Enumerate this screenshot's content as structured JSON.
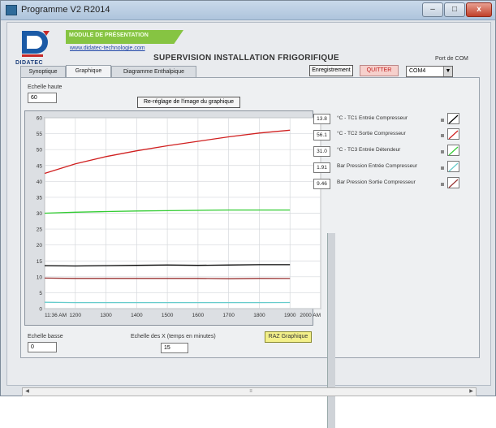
{
  "window": {
    "title": "Programme V2 R2014",
    "min_label": "–",
    "max_label": "□",
    "close_label": "x"
  },
  "header": {
    "logo_text": "DIDATEC",
    "banner_text": "MODULE DE PRÉSENTATION",
    "url": "www.didatec-technologie.com",
    "title": "SUPERVISION INSTALLATION FRIGORIFIQUE",
    "com_label": "Port de COM"
  },
  "tabs": [
    {
      "label": "Synoptique"
    },
    {
      "label": "Graphique"
    },
    {
      "label": "Diagramme Enthalpique"
    }
  ],
  "toolbar": {
    "enreg_label": "Enregistrement",
    "quitter_label": "QUITTER",
    "com_value": "COM4"
  },
  "controls": {
    "echelle_haute_label": "Echelle haute",
    "echelle_haute_value": "60",
    "reglage_label": "Re-réglage de l'image du graphique",
    "echelle_basse_label": "Echelle basse",
    "echelle_basse_value": "0",
    "echelle_temps_label": "Echelle des X (temps en minutes)",
    "echelle_temps_value": "15",
    "raz_label": "RAZ Graphique"
  },
  "readouts": [
    {
      "value": "13.8",
      "label": "°C - TC1 Entrée Compresseur",
      "color": "#000000"
    },
    {
      "value": "56.1",
      "label": "°C - TC2 Sortie Compresseur",
      "color": "#d02020"
    },
    {
      "value": "31.0",
      "label": "°C - TC3 Entrée Détendeur",
      "color": "#33cc33"
    },
    {
      "value": "1.91",
      "label": "Bar Pression Entrée Compresseur",
      "color": "#66cccc"
    },
    {
      "value": "9.46",
      "label": "Bar Pression Sortie Compresseur",
      "color": "#993333"
    }
  ],
  "chart_data": {
    "type": "line",
    "xlabel": "",
    "ylabel": "",
    "ylim": [
      0,
      60
    ],
    "xtick_labels": [
      "11:36 AM",
      "1200",
      "1300",
      "1400",
      "1500",
      "1600",
      "1700",
      "1800",
      "1900",
      "2000 AM"
    ],
    "ytick_labels": [
      "0",
      "5",
      "10",
      "15",
      "20",
      "25",
      "30",
      "35",
      "40",
      "45",
      "50",
      "55",
      "60"
    ],
    "xlim": [
      0,
      900
    ],
    "grid": true,
    "series": [
      {
        "color": "#d02020",
        "x": [
          0,
          100,
          200,
          300,
          400,
          500,
          600,
          700,
          800
        ],
        "y": [
          42.5,
          45.5,
          47.8,
          49.6,
          51.2,
          52.6,
          54.0,
          55.2,
          56.1
        ]
      },
      {
        "color": "#33cc33",
        "x": [
          0,
          100,
          200,
          300,
          400,
          500,
          600,
          700,
          800
        ],
        "y": [
          30.0,
          30.3,
          30.5,
          30.7,
          30.8,
          30.9,
          31.0,
          31.0,
          31.0
        ]
      },
      {
        "color": "#000000",
        "x": [
          0,
          100,
          200,
          300,
          400,
          500,
          600,
          700,
          800
        ],
        "y": [
          13.5,
          13.4,
          13.5,
          13.6,
          13.7,
          13.6,
          13.7,
          13.8,
          13.8
        ]
      },
      {
        "color": "#993333",
        "x": [
          0,
          100,
          200,
          300,
          400,
          500,
          600,
          700,
          800
        ],
        "y": [
          9.6,
          9.5,
          9.5,
          9.5,
          9.5,
          9.5,
          9.4,
          9.5,
          9.46
        ]
      },
      {
        "color": "#66cccc",
        "x": [
          0,
          100,
          200,
          300,
          400,
          500,
          600,
          700,
          800
        ],
        "y": [
          2.0,
          1.9,
          1.9,
          1.9,
          1.9,
          1.9,
          1.9,
          1.9,
          1.91
        ]
      }
    ]
  },
  "hscroll": {
    "left": "◀",
    "right": "▶",
    "mid": "≡"
  }
}
